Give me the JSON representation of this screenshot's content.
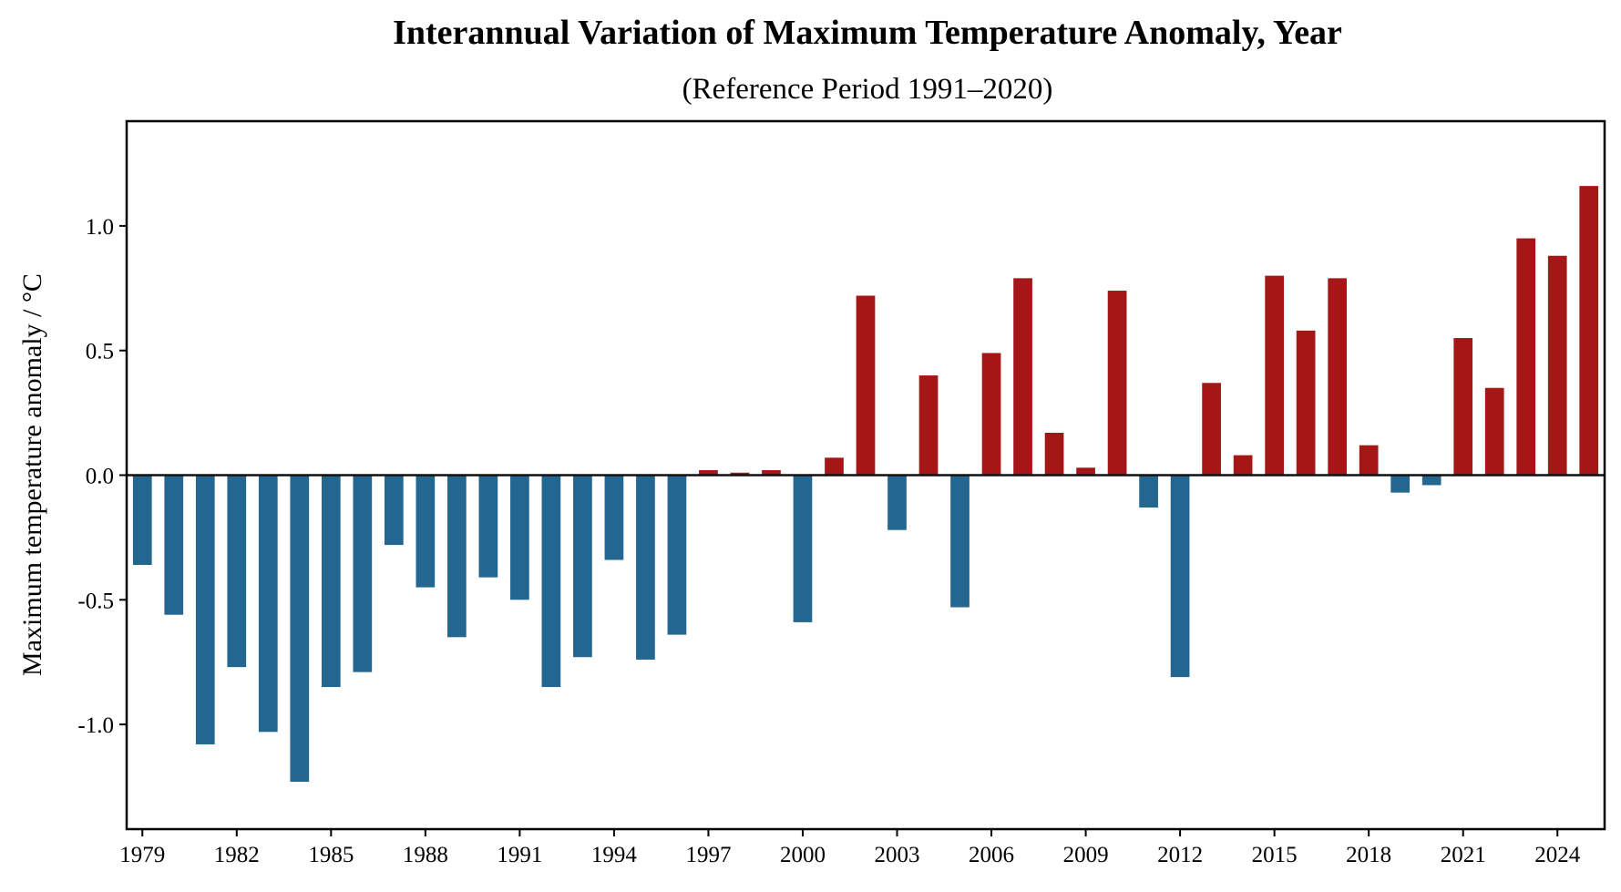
{
  "chart_data": {
    "type": "bar",
    "title": "Interannual Variation of Maximum Temperature Anomaly, Year",
    "subtitle": "(Reference Period 1991–2020)",
    "xlabel": "",
    "ylabel": "Maximum temperature anomaly / °C",
    "ylim": [
      -1.42,
      1.42
    ],
    "xlim": [
      1978.5,
      2025.5
    ],
    "yticks": [
      -1.0,
      -0.5,
      0.0,
      0.5,
      1.0
    ],
    "ytick_labels": [
      "-1.0",
      "-0.5",
      "0.0",
      "0.5",
      "1.0"
    ],
    "xticks": [
      1979,
      1982,
      1985,
      1988,
      1991,
      1994,
      1997,
      2000,
      2003,
      2006,
      2009,
      2012,
      2015,
      2018,
      2021,
      2024
    ],
    "xtick_labels": [
      "1979",
      "1982",
      "1985",
      "1988",
      "1991",
      "1994",
      "1997",
      "2000",
      "2003",
      "2006",
      "2009",
      "2012",
      "2015",
      "2018",
      "2021",
      "2024"
    ],
    "grid": false,
    "legend": "none",
    "zero_line": true,
    "colors": {
      "positive": "#a51616",
      "negative": "#236790"
    },
    "categories": [
      1979,
      1980,
      1981,
      1982,
      1983,
      1984,
      1985,
      1986,
      1987,
      1988,
      1989,
      1990,
      1991,
      1992,
      1993,
      1994,
      1995,
      1996,
      1997,
      1998,
      1999,
      2000,
      2001,
      2002,
      2003,
      2004,
      2005,
      2006,
      2007,
      2008,
      2009,
      2010,
      2011,
      2012,
      2013,
      2014,
      2015,
      2016,
      2017,
      2018,
      2019,
      2020,
      2021,
      2022,
      2023,
      2024,
      2025
    ],
    "values": [
      -0.36,
      -0.56,
      -1.08,
      -0.77,
      -1.03,
      -1.23,
      -0.85,
      -0.79,
      -0.28,
      -0.45,
      -0.65,
      -0.41,
      -0.5,
      -0.85,
      -0.73,
      -0.34,
      -0.74,
      -0.64,
      0.02,
      0.01,
      0.02,
      -0.59,
      0.07,
      0.72,
      -0.22,
      0.4,
      -0.53,
      0.49,
      0.79,
      0.17,
      0.03,
      0.74,
      -0.13,
      -0.81,
      0.37,
      0.08,
      0.8,
      0.58,
      0.79,
      0.12,
      -0.07,
      -0.04,
      0.55,
      0.35,
      0.95,
      0.88,
      1.16
    ]
  }
}
